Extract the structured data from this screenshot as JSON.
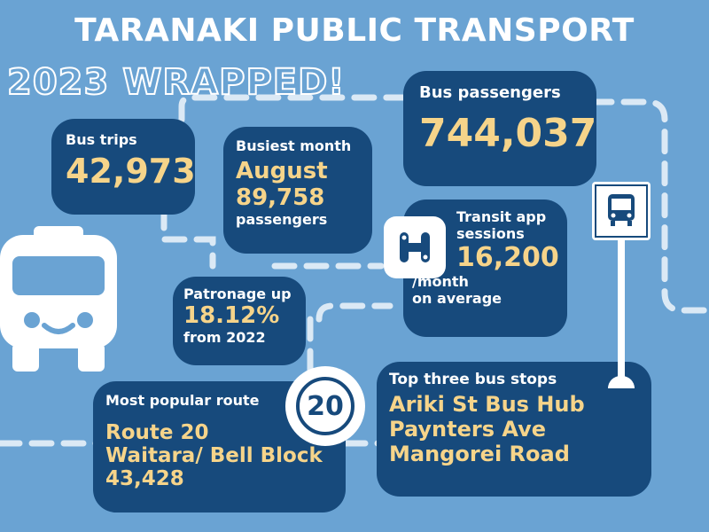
{
  "header": {
    "title": "TARANAKI PUBLIC TRANSPORT",
    "subtitle": "2023 WRAPPED!"
  },
  "stats": {
    "bus_trips": {
      "label": "Bus trips",
      "value": "42,973"
    },
    "busiest_month": {
      "label": "Busiest month",
      "month": "August",
      "count": "89,758",
      "unit": "passengers"
    },
    "bus_passengers": {
      "label": "Bus passengers",
      "value": "744,037"
    },
    "transit_app": {
      "label_line1": "Transit app",
      "label_line2": "sessions",
      "value": "16,200",
      "sub_line1": "/month",
      "sub_line2": "on average"
    },
    "patronage": {
      "label": "Patronage up",
      "value": "18.12%",
      "sub": "from 2022"
    },
    "popular_route": {
      "label": "Most popular route",
      "route": "Route 20",
      "name": "Waitara/ Bell Block",
      "count": "43,428",
      "badge": "20"
    },
    "top_stops": {
      "label": "Top three bus stops",
      "stops": [
        "Ariki St Bus Hub",
        "Paynters Ave",
        "Mangorei Road"
      ]
    }
  },
  "colors": {
    "background": "#6aa3d3",
    "card": "#174a7c",
    "highlight": "#f6d48a",
    "route_line": "#dbe9f5"
  },
  "icons": [
    "bus-icon",
    "transit-app-icon",
    "bus-stop-icon",
    "route-20-badge"
  ]
}
